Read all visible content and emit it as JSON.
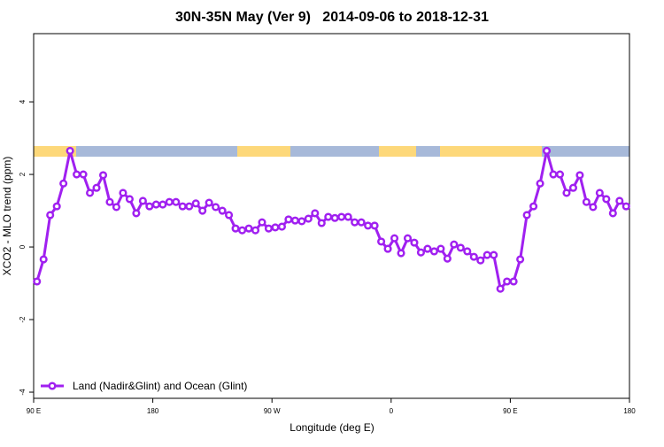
{
  "chart_data": {
    "type": "line",
    "title": "30N-35N May (Ver 9)   2014-09-06 to 2018-12-31",
    "x_label": "Longitude (deg E)",
    "y_label": "XCO2 - MLO trend (ppm)",
    "xlim": [
      90,
      540
    ],
    "ylim": [
      -4.17,
      5.88
    ],
    "xticks": [
      {
        "value": 90,
        "label": "90 E"
      },
      180,
      {
        "value": 270,
        "label": "90 W"
      },
      {
        "value": 360,
        "label": "0"
      },
      {
        "value": 450,
        "label": "90 E"
      },
      {
        "value": 540,
        "label": "180"
      }
    ],
    "yticks": [
      -4,
      -2,
      0,
      2,
      4
    ],
    "legend": "bottomleft",
    "x": [
      92.5,
      97.5,
      102.5,
      107.5,
      112.5,
      117.5,
      122.5,
      127.5,
      132.5,
      137.5,
      142.5,
      147.5,
      152.5,
      157.5,
      162.5,
      167.5,
      172.5,
      177.5,
      182.5,
      187.5,
      192.5,
      197.5,
      202.5,
      207.5,
      212.5,
      217.5,
      222.5,
      227.5,
      232.5,
      237.5,
      242.5,
      247.5,
      252.5,
      257.5,
      262.5,
      267.5,
      272.5,
      277.5,
      282.5,
      287.5,
      292.5,
      297.5,
      302.5,
      307.5,
      312.5,
      317.5,
      322.5,
      327.5,
      332.5,
      337.5,
      342.5,
      347.5,
      352.5,
      357.5,
      362.5,
      367.5,
      372.5,
      377.5,
      382.5,
      387.5,
      392.5,
      397.5,
      402.5,
      407.5,
      412.5,
      417.5,
      422.5,
      427.5,
      432.5,
      437.5,
      442.5,
      447.5,
      452.5,
      457.5,
      462.5,
      467.5,
      472.5,
      477.5,
      482.5,
      487.5,
      492.5,
      497.5,
      502.5,
      507.5,
      512.5,
      517.5,
      522.5,
      527.5,
      532.5,
      537.5
    ],
    "series": [
      {
        "name": "Land (Nadir&Glint) and Ocean (Glint)",
        "color": "#a020f0",
        "values": [
          -0.95,
          -0.34,
          0.88,
          1.12,
          1.75,
          2.65,
          2.0,
          2.0,
          1.49,
          1.63,
          1.98,
          1.24,
          1.1,
          1.49,
          1.32,
          0.93,
          1.27,
          1.12,
          1.17,
          1.17,
          1.24,
          1.24,
          1.12,
          1.12,
          1.2,
          1.0,
          1.22,
          1.1,
          1.0,
          0.88,
          0.51,
          0.46,
          0.51,
          0.46,
          0.68,
          0.51,
          0.54,
          0.56,
          0.76,
          0.73,
          0.71,
          0.78,
          0.93,
          0.66,
          0.83,
          0.8,
          0.83,
          0.83,
          0.68,
          0.68,
          0.59,
          0.59,
          0.15,
          -0.05,
          0.24,
          -0.17,
          0.24,
          0.12,
          -0.15,
          -0.05,
          -0.12,
          -0.05,
          -0.32,
          0.07,
          -0.02,
          -0.12,
          -0.27,
          -0.37,
          -0.22,
          -0.22,
          -1.15,
          -0.95,
          -0.95,
          -0.34,
          0.88,
          1.12,
          1.75,
          2.65,
          2.0,
          2.0,
          1.49,
          1.63,
          1.98,
          1.24,
          1.1,
          1.49,
          1.32,
          0.93,
          1.27,
          1.12
        ]
      }
    ]
  }
}
